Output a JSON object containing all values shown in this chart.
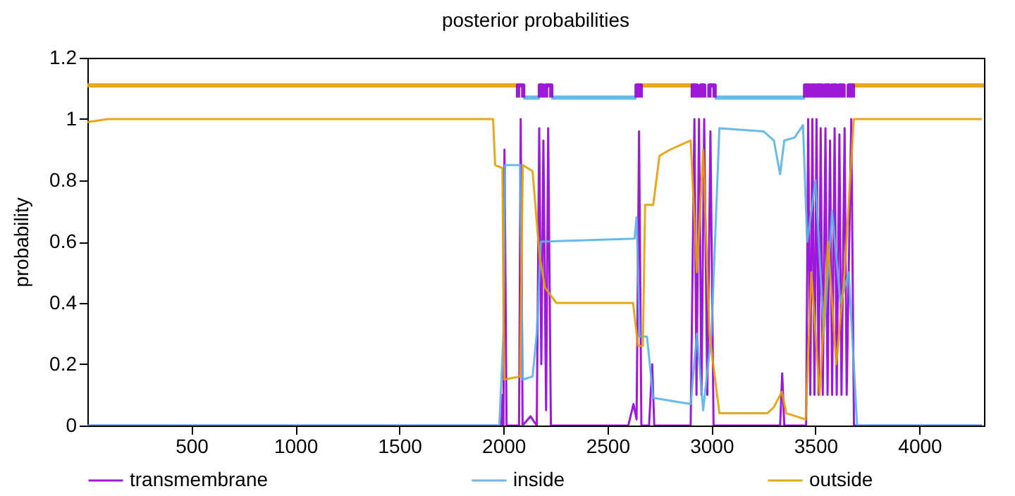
{
  "chart_data": {
    "type": "line",
    "title": "posterior probabilities",
    "ylabel": "probability",
    "xlim": [
      0,
      4310
    ],
    "xticks": [
      500,
      1000,
      1500,
      2000,
      2500,
      3000,
      3500,
      4000
    ],
    "ylim": [
      0,
      1.2
    ],
    "yticks": [
      0,
      0.2,
      0.4,
      0.6,
      0.8,
      1,
      1.2
    ],
    "grid": false,
    "legend": "bottom",
    "line_style": "solid",
    "marker": "none",
    "series": [
      {
        "name": "transmembrane",
        "color": "#9400d3",
        "x": [
          0,
          1990,
          1995,
          2000,
          2005,
          2015,
          2075,
          2083,
          2092,
          2130,
          2160,
          2172,
          2182,
          2192,
          2205,
          2215,
          2228,
          2600,
          2625,
          2640,
          2652,
          2663,
          2700,
          2715,
          2725,
          2900,
          2918,
          2928,
          2940,
          2952,
          2965,
          2980,
          2995,
          3010,
          3330,
          3340,
          3350,
          3455,
          3465,
          3475,
          3485,
          3495,
          3505,
          3515,
          3525,
          3535,
          3548,
          3558,
          3570,
          3580,
          3592,
          3602,
          3615,
          3625,
          3640,
          3650,
          3672,
          3685,
          4300
        ],
        "values": [
          0,
          0,
          0.1,
          0,
          0.9,
          0,
          0,
          1.0,
          0,
          0.03,
          0,
          0.97,
          0.2,
          0.93,
          0.05,
          0.97,
          0,
          0,
          0.07,
          0.02,
          0.96,
          0,
          0,
          0.2,
          0,
          0,
          1.0,
          0.1,
          1.0,
          0.1,
          1.0,
          0.1,
          0.96,
          0,
          0,
          0.17,
          0,
          0,
          1.0,
          0.1,
          1.0,
          0.1,
          1.0,
          0.1,
          0.97,
          0.1,
          0.97,
          0.1,
          0.93,
          0.1,
          0.97,
          0.1,
          0.95,
          0.1,
          0.97,
          0.1,
          1.0,
          0,
          0
        ]
      },
      {
        "name": "inside",
        "color": "#56b4e9",
        "x": [
          0,
          1980,
          2000,
          2008,
          2080,
          2093,
          2140,
          2160,
          2180,
          2630,
          2640,
          2655,
          2690,
          2720,
          2900,
          2930,
          2960,
          3000,
          3038,
          3250,
          3300,
          3330,
          3350,
          3400,
          3440,
          3460,
          3500,
          3540,
          3580,
          3620,
          3660,
          3700,
          4300
        ],
        "values": [
          0,
          0,
          0.3,
          0.85,
          0.85,
          0.15,
          0.16,
          0.3,
          0.6,
          0.61,
          0.68,
          0.29,
          0.29,
          0.09,
          0.07,
          0.3,
          0.05,
          0.3,
          0.97,
          0.96,
          0.93,
          0.82,
          0.93,
          0.94,
          0.98,
          0.6,
          0.8,
          0.3,
          0.7,
          0.4,
          0.5,
          0,
          0
        ]
      },
      {
        "name": "outside",
        "color": "#e69f00",
        "x": [
          0,
          100,
          1950,
          1960,
          1995,
          2003,
          2080,
          2093,
          2140,
          2174,
          2200,
          2254,
          2623,
          2647,
          2670,
          2681,
          2720,
          2750,
          2800,
          2900,
          2930,
          2960,
          2990,
          3038,
          3269,
          3300,
          3338,
          3360,
          3453,
          3480,
          3520,
          3560,
          3600,
          3640,
          3684,
          4300
        ],
        "values": [
          0.99,
          1.0,
          1.0,
          0.85,
          0.84,
          0.15,
          0.16,
          0.85,
          0.83,
          0.55,
          0.45,
          0.4,
          0.4,
          0.26,
          0.26,
          0.72,
          0.72,
          0.88,
          0.9,
          0.93,
          0.5,
          0.9,
          0.3,
          0.04,
          0.04,
          0.06,
          0.11,
          0.04,
          0.02,
          0.5,
          0.1,
          0.6,
          0.2,
          0.5,
          1.0,
          1.0
        ]
      },
      {
        "color": "#e69f00",
        "x": [
          0,
          2070,
          null,
          2660,
          2910,
          null,
          3680,
          4310
        ],
        "values": [
          1.11,
          1.11,
          null,
          1.11,
          1.11,
          null,
          1.11,
          1.11
        ]
      },
      {
        "color": "#56b4e9",
        "x": [
          2095,
          2175,
          null,
          2230,
          2640,
          null,
          3015,
          3450
        ],
        "values": [
          1.07,
          1.07,
          null,
          1.07,
          1.07,
          null,
          1.07,
          1.07
        ]
      },
      {
        "color": "#9400d3",
        "x": [
          2070,
          2070,
          2095,
          2095,
          null,
          2175,
          2175,
          2190,
          2190,
          null,
          2205,
          2205,
          2230,
          2230,
          null,
          2640,
          2640,
          2660,
          2660,
          null,
          2910,
          2910,
          2930,
          2930,
          null,
          2950,
          2950,
          2965,
          2965,
          null,
          2990,
          2990,
          3015,
          3015,
          null,
          3450,
          3450,
          3470,
          3470,
          null,
          3480,
          3480,
          3500,
          3500,
          null,
          3510,
          3510,
          3530,
          3530,
          null,
          3545,
          3545,
          3565,
          3565,
          null,
          3580,
          3580,
          3600,
          3600,
          null,
          3615,
          3615,
          3635,
          3635,
          null,
          3660,
          3660,
          3680,
          3680
        ],
        "values": [
          1.07,
          1.11,
          1.11,
          1.07,
          null,
          1.07,
          1.11,
          1.11,
          1.07,
          null,
          1.07,
          1.11,
          1.11,
          1.07,
          null,
          1.07,
          1.11,
          1.11,
          1.07,
          null,
          1.07,
          1.11,
          1.11,
          1.07,
          null,
          1.07,
          1.11,
          1.11,
          1.07,
          null,
          1.07,
          1.11,
          1.11,
          1.07,
          null,
          1.07,
          1.11,
          1.11,
          1.07,
          null,
          1.07,
          1.11,
          1.11,
          1.07,
          null,
          1.07,
          1.11,
          1.11,
          1.07,
          null,
          1.07,
          1.11,
          1.11,
          1.07,
          null,
          1.07,
          1.11,
          1.11,
          1.07,
          null,
          1.07,
          1.11,
          1.11,
          1.07,
          null,
          1.07,
          1.11,
          1.11,
          1.07
        ]
      }
    ]
  }
}
